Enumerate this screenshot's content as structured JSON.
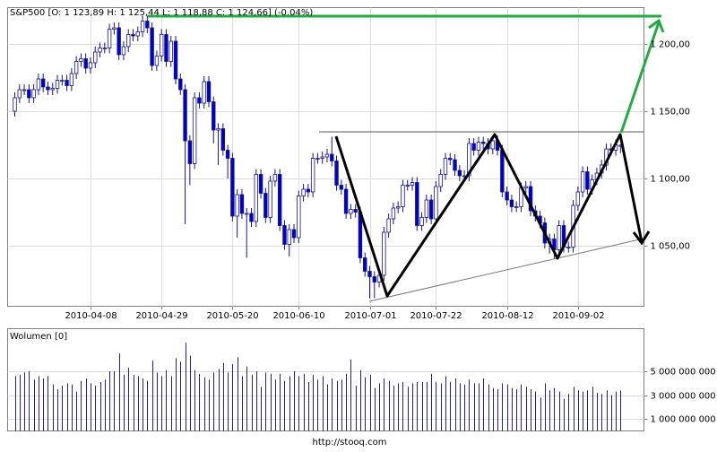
{
  "chart_data": [
    {
      "type": "candlestick",
      "title": "S&P500 [O: 1 123,89 H: 1 125,44 L: 1 118,88 C: 1 124,66] (-0.04%)",
      "up_color": "#ffffff",
      "down_color": "#0000cc",
      "edge_color": "#14148c",
      "grid": true,
      "ylim": [
        1005,
        1227
      ],
      "yticks": [
        {
          "value": 1050,
          "label": "1 050,00"
        },
        {
          "value": 1100,
          "label": "1 100,00"
        },
        {
          "value": 1150,
          "label": "1 150,00"
        },
        {
          "value": 1200,
          "label": "1 200,00"
        }
      ],
      "categories": [
        null,
        null,
        null,
        null,
        null,
        null,
        null,
        null,
        null,
        null,
        null,
        null,
        null,
        null,
        null,
        null,
        "2010-04-08",
        null,
        null,
        null,
        null,
        null,
        null,
        null,
        null,
        null,
        null,
        null,
        null,
        null,
        null,
        "2010-04-29",
        null,
        null,
        null,
        null,
        null,
        null,
        null,
        null,
        null,
        null,
        null,
        null,
        null,
        null,
        "2010-05-20",
        null,
        null,
        null,
        null,
        null,
        null,
        null,
        null,
        null,
        null,
        null,
        null,
        null,
        "2010-06-10",
        null,
        null,
        null,
        null,
        null,
        null,
        null,
        null,
        null,
        null,
        null,
        null,
        null,
        null,
        "2010-07-01",
        null,
        null,
        null,
        null,
        null,
        null,
        null,
        null,
        null,
        null,
        null,
        null,
        null,
        "2010-07-22",
        null,
        null,
        null,
        null,
        null,
        null,
        null,
        null,
        null,
        null,
        null,
        null,
        null,
        null,
        "2010-08-12",
        null,
        null,
        null,
        null,
        null,
        null,
        null,
        null,
        null,
        null,
        null,
        null,
        null,
        null,
        "2010-09-02",
        null,
        null,
        null,
        null,
        null,
        null,
        null,
        null,
        null
      ],
      "open": [
        1150,
        1160,
        1166,
        1166,
        1160,
        1166,
        1174,
        1168,
        1166,
        1167,
        1173,
        1173,
        1169,
        1178,
        1187,
        1189,
        1182,
        1186,
        1194,
        1197,
        1197,
        1211,
        1212,
        1192,
        1198,
        1207,
        1206,
        1209,
        1217,
        1212,
        1184,
        1191,
        1207,
        1187,
        1202,
        1174,
        1166,
        1128,
        1111,
        1160,
        1156,
        1172,
        1157,
        1136,
        1137,
        1121,
        1115,
        1072,
        1088,
        1074,
        1074,
        1068,
        1103,
        1089,
        1071,
        1098,
        1103,
        1065,
        1051,
        1062,
        1056,
        1087,
        1092,
        1090,
        1115,
        1115,
        1116,
        1118,
        1113,
        1095,
        1092,
        1074,
        1077,
        1075,
        1041,
        1031,
        1027,
        1023,
        1028,
        1060,
        1070,
        1078,
        1079,
        1095,
        1095,
        1097,
        1065,
        1071,
        1084,
        1070,
        1094,
        1103,
        1115,
        1114,
        1106,
        1102,
        1102,
        1126,
        1121,
        1127,
        1126,
        1122,
        1128,
        1121,
        1090,
        1084,
        1079,
        1079,
        1093,
        1094,
        1076,
        1072,
        1067,
        1052,
        1055,
        1047,
        1065,
        1049,
        1049,
        1080,
        1090,
        1105,
        1092,
        1099,
        1104,
        1110,
        1122,
        1121,
        1123.89
      ],
      "high": [
        1164,
        1170,
        1170,
        1170,
        1170,
        1178,
        1178,
        1172,
        1171,
        1177,
        1177,
        1177,
        1182,
        1191,
        1193,
        1193,
        1190,
        1198,
        1201,
        1201,
        1215,
        1216,
        1216,
        1202,
        1211,
        1211,
        1213,
        1221,
        1221,
        1216,
        1195,
        1211,
        1211,
        1206,
        1206,
        1178,
        1170,
        1132,
        1164,
        1164,
        1176,
        1176,
        1161,
        1141,
        1141,
        1125,
        1119,
        1092,
        1092,
        1078,
        1078,
        1107,
        1107,
        1093,
        1102,
        1107,
        1107,
        1069,
        1066,
        1066,
        1091,
        1096,
        1096,
        1119,
        1119,
        1120,
        1122,
        1131,
        1117,
        1099,
        1096,
        1081,
        1081,
        1079,
        1045,
        1035,
        1031,
        1032,
        1064,
        1074,
        1082,
        1083,
        1099,
        1099,
        1101,
        1101,
        1075,
        1088,
        1088,
        1098,
        1107,
        1119,
        1119,
        1118,
        1110,
        1106,
        1130,
        1130,
        1131,
        1131,
        1130,
        1132,
        1132,
        1125,
        1094,
        1088,
        1083,
        1097,
        1098,
        1098,
        1080,
        1076,
        1071,
        1059,
        1059,
        1069,
        1069,
        1053,
        1084,
        1094,
        1109,
        1109,
        1103,
        1108,
        1114,
        1126,
        1126,
        1129,
        1125.44
      ],
      "low": [
        1146,
        1156,
        1162,
        1156,
        1156,
        1162,
        1164,
        1162,
        1162,
        1163,
        1169,
        1165,
        1165,
        1174,
        1183,
        1178,
        1178,
        1182,
        1190,
        1193,
        1193,
        1207,
        1188,
        1188,
        1194,
        1202,
        1202,
        1205,
        1208,
        1180,
        1180,
        1187,
        1183,
        1183,
        1170,
        1162,
        1066,
        1095,
        1107,
        1152,
        1152,
        1153,
        1126,
        1110,
        1117,
        1100,
        1068,
        1056,
        1070,
        1041,
        1064,
        1064,
        1085,
        1067,
        1067,
        1094,
        1061,
        1047,
        1042,
        1052,
        1052,
        1083,
        1086,
        1086,
        1111,
        1111,
        1112,
        1109,
        1091,
        1088,
        1070,
        1070,
        1071,
        1037,
        1027,
        1011,
        1011,
        1019,
        1024,
        1056,
        1066,
        1074,
        1075,
        1091,
        1091,
        1061,
        1061,
        1067,
        1066,
        1066,
        1090,
        1099,
        1110,
        1102,
        1098,
        1098,
        1098,
        1117,
        1117,
        1122,
        1118,
        1118,
        1117,
        1086,
        1080,
        1075,
        1075,
        1075,
        1089,
        1072,
        1068,
        1063,
        1048,
        1044,
        1040,
        1043,
        1045,
        1045,
        1045,
        1076,
        1086,
        1088,
        1088,
        1095,
        1100,
        1106,
        1117,
        1117,
        1118.88
      ],
      "close": [
        1160,
        1166,
        1166,
        1160,
        1166,
        1174,
        1168,
        1166,
        1167,
        1173,
        1173,
        1169,
        1178,
        1187,
        1189,
        1182,
        1186,
        1194,
        1197,
        1197,
        1211,
        1212,
        1192,
        1198,
        1207,
        1206,
        1209,
        1217,
        1212,
        1184,
        1191,
        1207,
        1187,
        1202,
        1174,
        1166,
        1128,
        1111,
        1160,
        1156,
        1172,
        1157,
        1136,
        1137,
        1121,
        1115,
        1072,
        1088,
        1074,
        1074,
        1068,
        1103,
        1089,
        1071,
        1098,
        1103,
        1065,
        1051,
        1062,
        1056,
        1087,
        1092,
        1090,
        1115,
        1115,
        1116,
        1118,
        1113,
        1095,
        1092,
        1074,
        1077,
        1075,
        1041,
        1031,
        1027,
        1023,
        1028,
        1060,
        1070,
        1078,
        1079,
        1095,
        1095,
        1097,
        1065,
        1071,
        1084,
        1070,
        1094,
        1103,
        1115,
        1114,
        1106,
        1102,
        1102,
        1126,
        1121,
        1127,
        1126,
        1122,
        1128,
        1121,
        1090,
        1084,
        1079,
        1079,
        1093,
        1094,
        1076,
        1072,
        1067,
        1052,
        1055,
        1047,
        1065,
        1049,
        1049,
        1080,
        1090,
        1105,
        1092,
        1099,
        1104,
        1110,
        1122,
        1121,
        1125,
        1124.66
      ]
    },
    {
      "type": "bar",
      "title": "Wolumen [0]",
      "color": "#1e1ea0",
      "grid": true,
      "ylim": [
        0,
        8500000000
      ],
      "yticks": [
        {
          "value": 1000000000,
          "label": "1 000 000 000"
        },
        {
          "value": 3000000000,
          "label": "3 000 000 000"
        },
        {
          "value": 5000000000,
          "label": "5 000 000 000"
        }
      ],
      "values": [
        4600000000.0,
        4700000000.0,
        4900000000.0,
        5000000000.0,
        4300000000.0,
        4600000000.0,
        4400000000.0,
        4600000000.0,
        3900000000.0,
        3500000000.0,
        3800000000.0,
        4000000000.0,
        3900000000.0,
        3300000000.0,
        4200000000.0,
        4400000000.0,
        4000000000.0,
        3800000000.0,
        4100000000.0,
        4300000000.0,
        5000000000.0,
        5000000000.0,
        6500000000.0,
        4700000000.0,
        5300000000.0,
        4700000000.0,
        4600000000.0,
        4400000000.0,
        4200000000.0,
        5900000000.0,
        4900000000.0,
        4600000000.0,
        5100000000.0,
        4600000000.0,
        6100000000.0,
        5800000000.0,
        7400000000.0,
        6300000000.0,
        5100000000.0,
        4800000000.0,
        4500000000.0,
        4300000000.0,
        4900000000.0,
        5200000000.0,
        5700000000.0,
        4900000000.0,
        5600000000.0,
        6200000000.0,
        4600000000.0,
        5400000000.0,
        4700000000.0,
        5000000000.0,
        3700000000.0,
        4900000000.0,
        4800000000.0,
        4300000000.0,
        4800000000.0,
        4200000000.0,
        4600000000.0,
        5000000000.0,
        4600000000.0,
        4800000000.0,
        4100000000.0,
        4700000000.0,
        4300000000.0,
        4600000000.0,
        3900000000.0,
        4400000000.0,
        4200000000.0,
        4300000000.0,
        4800000000.0,
        6000000000.0,
        3800000000.0,
        5100000000.0,
        4500000000.0,
        4700000000.0,
        3600000000.0,
        4000000000.0,
        4400000000.0,
        4200000000.0,
        3800000000.0,
        4000000000.0,
        4100000000.0,
        3700000000.0,
        4000000000.0,
        4100000000.0,
        4100000000.0,
        4100000000.0,
        4800000000.0,
        4100000000.0,
        4000000000.0,
        4600000000.0,
        4100000000.0,
        4400000000.0,
        4000000000.0,
        3900000000.0,
        4300000000.0,
        4000000000.0,
        4000000000.0,
        4400000000.0,
        3900000000.0,
        3600000000.0,
        3500000000.0,
        4000000000.0,
        3900000000.0,
        3600000000.0,
        3500000000.0,
        3900000000.0,
        3700000000.0,
        3500000000.0,
        3300000000.0,
        2800000000.0,
        4000000000.0,
        3400000000.0,
        3600000000.0,
        3300000000.0,
        2700000000.0,
        3100000000.0,
        3700000000.0,
        3400000000.0,
        3300000000.0,
        3400000000.0,
        3700000000.0,
        3200000000.0,
        3100000000.0,
        3400000000.0,
        3000000000.0,
        3300000000.0,
        3400000000.0
      ],
      "footer": "http://stooq.com"
    }
  ]
}
